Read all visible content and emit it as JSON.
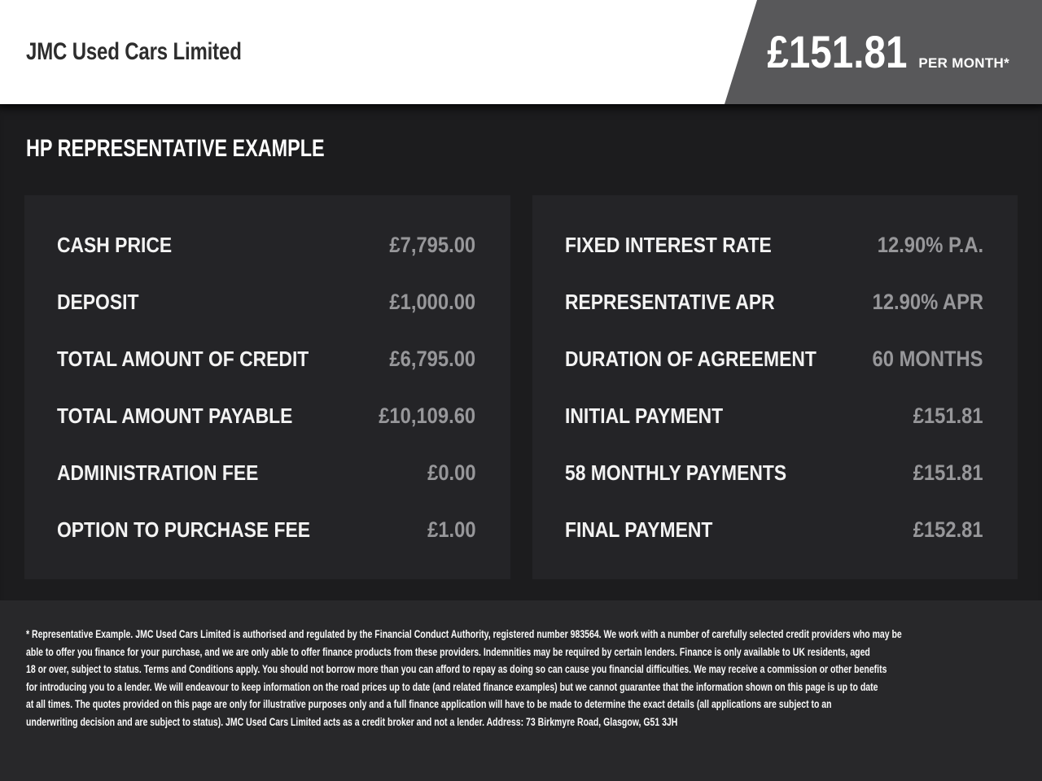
{
  "header": {
    "dealer_name": "JMC Used Cars Limited",
    "monthly_price": "£151.81",
    "per_month_label": "PER MONTH*"
  },
  "main": {
    "title": "HP REPRESENTATIVE EXAMPLE",
    "left_panel": {
      "rows": [
        {
          "label": "CASH PRICE",
          "value": "£7,795.00"
        },
        {
          "label": "DEPOSIT",
          "value": "£1,000.00"
        },
        {
          "label": "TOTAL AMOUNT OF CREDIT",
          "value": "£6,795.00"
        },
        {
          "label": "TOTAL AMOUNT PAYABLE",
          "value": "£10,109.60"
        },
        {
          "label": "ADMINISTRATION FEE",
          "value": "£0.00"
        },
        {
          "label": "OPTION TO PURCHASE FEE",
          "value": "£1.00"
        }
      ]
    },
    "right_panel": {
      "rows": [
        {
          "label": "FIXED INTEREST RATE",
          "value": "12.90% P.A."
        },
        {
          "label": "REPRESENTATIVE APR",
          "value": "12.90% APR"
        },
        {
          "label": "DURATION OF AGREEMENT",
          "value": "60 MONTHS"
        },
        {
          "label": "INITIAL PAYMENT",
          "value": "£151.81"
        },
        {
          "label": "58 MONTHLY PAYMENTS",
          "value": "£151.81"
        },
        {
          "label": "FINAL PAYMENT",
          "value": "£152.81"
        }
      ]
    }
  },
  "footer": {
    "lines": [
      "* Representative Example. JMC Used Cars Limited is authorised and regulated by the Financial Conduct Authority, registered number 983564. We work with a number of carefully selected credit providers who may be",
      "able to offer you finance for your purchase, and we are only able to offer finance products from these providers. Indemnities may be required by certain lenders. Finance is only available to UK residents, aged",
      "18 or over, subject to status. Terms and Conditions apply. You should not borrow more than you can afford to repay as doing so can cause you financial difficulties. We may receive a commission or other benefits",
      "for introducing you to a lender. We will endeavour to keep information on the road prices up to date (and related finance examples) but we cannot guarantee that the information shown on this page is up to date",
      "at all times. The quotes provided on this page are only for illustrative purposes only and a full finance application will have to be made to determine the exact details (all applications are subject to an",
      "underwriting decision and are subject to status). JMC Used Cars Limited acts as a credit broker and not a lender. Address: 73 Birkmyre Road, Glasgow, G51 3JH"
    ]
  },
  "colors": {
    "header_bg": "#ffffff",
    "banner_bg": "#58585a",
    "page_bg": "#1c1c1e",
    "panel_bg": "#242427",
    "footer_bg": "#28282a",
    "label_text": "#f3f3f3",
    "value_text": "#97979a",
    "dealer_text": "#2d2d2d"
  }
}
